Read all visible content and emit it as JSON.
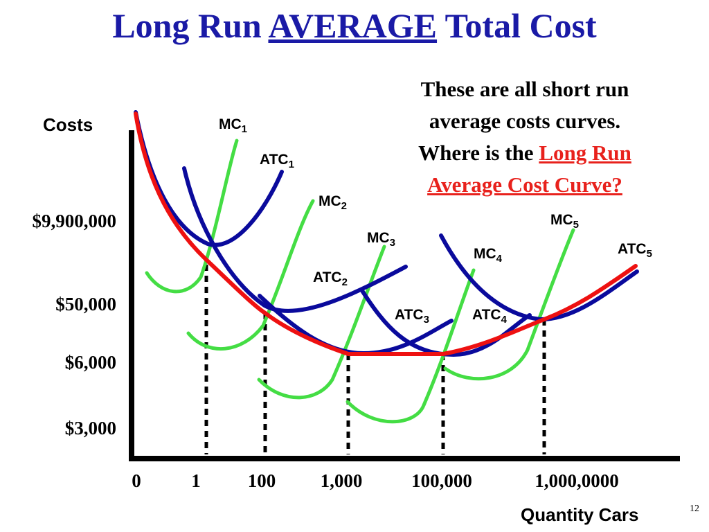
{
  "title": {
    "part1": "Long Run",
    "emphasis": "AVERAGE",
    "part2": "Total Cost"
  },
  "note": {
    "line1": "These are all short run",
    "line2": "average costs curves.",
    "line3_prefix": "Where is the",
    "line3_highlight": "Long Run",
    "line4_highlight": "Average Cost Curve?"
  },
  "page_number": "12",
  "colors": {
    "title": "#1a1aa6",
    "atc": "#0a0a9c",
    "mc": "#44dd44",
    "lratc": "#ee1111",
    "highlight": "#e8211c"
  },
  "chart_data": {
    "type": "line",
    "ylabel": "Costs",
    "xlabel": "Quantity Cars",
    "y_ticks": [
      "$9,900,000",
      "$50,000",
      "$6,000",
      "$3,000"
    ],
    "x_ticks": [
      "0",
      "1",
      "100",
      "1,000",
      "100,000",
      "1,000,0000"
    ],
    "x_scale": "categorical",
    "grid": false,
    "dotted_guides_at": [
      "1",
      "100",
      "1,000",
      "100,000",
      "1,000,0000"
    ],
    "curve_labels": [
      {
        "name": "MC",
        "sub": "1"
      },
      {
        "name": "ATC",
        "sub": "1"
      },
      {
        "name": "MC",
        "sub": "2"
      },
      {
        "name": "MC",
        "sub": "3"
      },
      {
        "name": "ATC",
        "sub": "2"
      },
      {
        "name": "ATC",
        "sub": "3"
      },
      {
        "name": "MC",
        "sub": "5"
      },
      {
        "name": "ATC",
        "sub": "5"
      },
      {
        "name": "MC",
        "sub": "4"
      },
      {
        "name": "ATC",
        "sub": "4"
      }
    ]
  }
}
